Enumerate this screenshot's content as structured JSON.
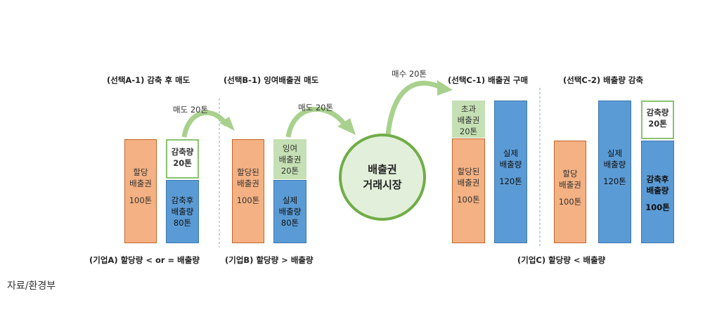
{
  "titles": {
    "a1": "(선택A-1) 감축 후 매도",
    "b1": "(선택B-1) 잉여배출권 매도",
    "c1": "(선택C-1) 배출권 구매",
    "c2": "(선택C-2) 배출량 감축"
  },
  "arrows": {
    "a": "매도 20톤",
    "b": "매도 20톤",
    "c": "매수 20톤"
  },
  "a": {
    "alloc": [
      "할당",
      "배출권",
      "",
      "100톤"
    ],
    "reduced": [
      "감축량",
      "20톤"
    ],
    "after": [
      "감축후",
      "배출량",
      "80톤"
    ]
  },
  "b": {
    "alloc": [
      "할당된",
      "배출권",
      "",
      "100톤"
    ],
    "surplus": [
      "잉여",
      "배출권",
      "20톤"
    ],
    "actual": [
      "실제",
      "배출량",
      "80톤"
    ]
  },
  "market": [
    "배출권",
    "거래시장"
  ],
  "c1": {
    "excess": [
      "초과",
      "배출권",
      "20톤"
    ],
    "alloc": [
      "할당된",
      "배출권",
      "",
      "100톤"
    ],
    "actual": [
      "실제",
      "배출량",
      "",
      "120톤"
    ]
  },
  "c2": {
    "alloc": [
      "할당",
      "배출권",
      "",
      "100톤"
    ],
    "actual": [
      "실제",
      "배출량",
      "",
      "120톤"
    ],
    "reduced": [
      "감축량",
      "20톤"
    ],
    "after": [
      "감축후",
      "배출량",
      "",
      "100톤"
    ]
  },
  "bottom_labels": {
    "a": "(기업A) 할당량 < or = 배출량",
    "b": "(기업B) 할당량 > 배출량",
    "c": "(기업C) 할당량 < 배출량"
  },
  "source": "자료/환경부",
  "colors": {
    "orange": "#f4b183",
    "blue": "#5b9bd5",
    "green": "#c5e0b4",
    "arrow": "#a9d18e",
    "circle_border": "#70ad47"
  }
}
